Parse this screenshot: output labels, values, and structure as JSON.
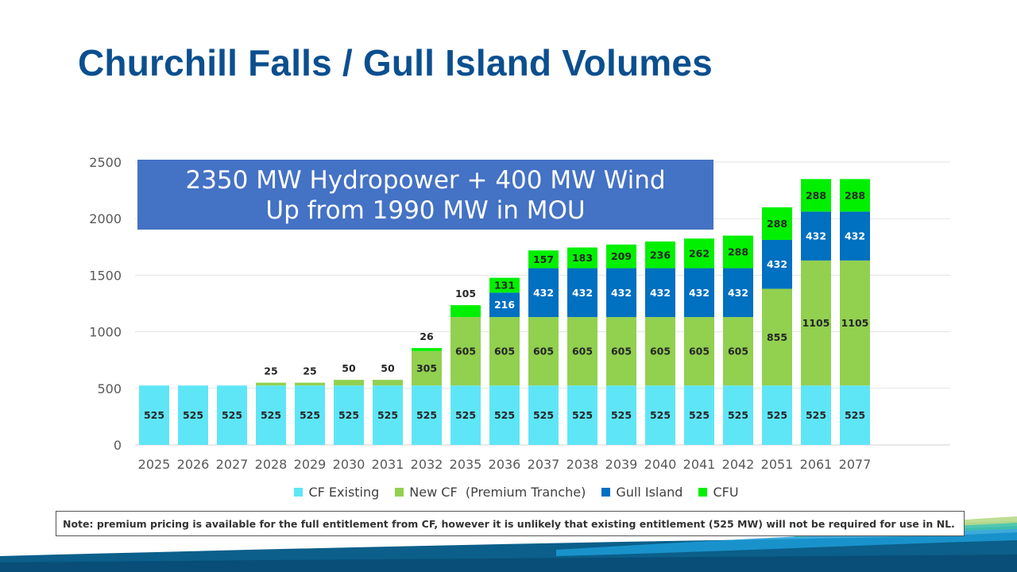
{
  "slide": {
    "title": "Churchill Falls / Gull Island Volumes",
    "callout_line1": "2350 MW Hydropower + 400 MW Wind",
    "callout_line2": "Up from 1990 MW in MOU",
    "note": "Note: premium pricing is available for the full entitlement from CF, however it is unlikely that existing entitlement (525 MW) will not be required for use in NL."
  },
  "chart_data": {
    "type": "bar",
    "stacked": true,
    "categories": [
      "2025",
      "2026",
      "2027",
      "2028",
      "2029",
      "2030",
      "2031",
      "2032",
      "2035",
      "2036",
      "2037",
      "2038",
      "2039",
      "2040",
      "2041",
      "2042",
      "2051",
      "2061",
      "2077"
    ],
    "series": [
      {
        "name": "CF Existing",
        "color": "#5ee6f7",
        "values": [
          525,
          525,
          525,
          525,
          525,
          525,
          525,
          525,
          525,
          525,
          525,
          525,
          525,
          525,
          525,
          525,
          525,
          525,
          525
        ]
      },
      {
        "name": "New CF  (Premium Tranche)",
        "color": "#92d050",
        "values": [
          0,
          0,
          0,
          25,
          25,
          50,
          50,
          305,
          605,
          605,
          605,
          605,
          605,
          605,
          605,
          605,
          855,
          1105,
          1105
        ]
      },
      {
        "name": "Gull Island",
        "color": "#0070c0",
        "values": [
          0,
          0,
          0,
          0,
          0,
          0,
          0,
          0,
          0,
          216,
          432,
          432,
          432,
          432,
          432,
          432,
          432,
          432,
          432
        ]
      },
      {
        "name": "CFU",
        "color": "#00f000",
        "values": [
          0,
          0,
          0,
          0,
          0,
          0,
          0,
          26,
          105,
          131,
          157,
          183,
          209,
          236,
          262,
          288,
          288,
          288,
          288
        ]
      }
    ],
    "ylim": [
      0,
      2500
    ],
    "yticks": [
      0,
      500,
      1000,
      1500,
      2000,
      2500
    ],
    "grid": true,
    "legend": "bottom"
  }
}
